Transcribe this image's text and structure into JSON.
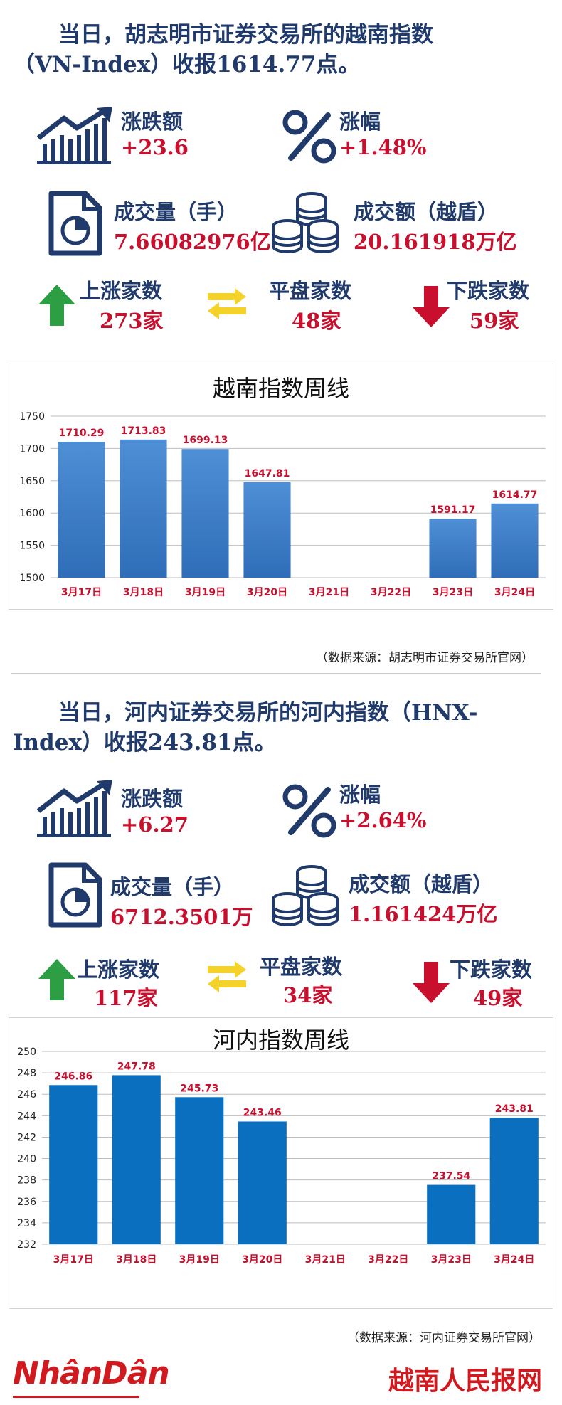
{
  "vn": {
    "headline_line1": "当日，胡志明市证券交易所的越南指数",
    "headline_line2": "（VN-Index）收报1614.77点。",
    "stats": {
      "change_label": "涨跌额",
      "change_value": "+23.6",
      "pct_label": "涨幅",
      "pct_value": "+1.48%",
      "volume_label": "成交量（手）",
      "volume_value": "7.66082976亿",
      "turnover_label": "成交额（越盾）",
      "turnover_value": "20.161918万亿",
      "up_label": "上涨家数",
      "up_value": "273家",
      "flat_label": "平盘家数",
      "flat_value": "48家",
      "down_label": "下跌家数",
      "down_value": "59家"
    },
    "source": "（数据来源：胡志明市证券交易所官网）"
  },
  "hnx": {
    "headline_line1": "当日，河内证券交易所的河内指数（HNX-",
    "headline_line2": "Index）收报243.81点。",
    "stats": {
      "change_label": "涨跌额",
      "change_value": "+6.27",
      "pct_label": "涨幅",
      "pct_value": "+2.64%",
      "volume_label": "成交量（手）",
      "volume_value": "6712.3501万",
      "turnover_label": "成交额（越盾）",
      "turnover_value": "1.161424万亿",
      "up_label": "上涨家数",
      "up_value": "117家",
      "flat_label": "平盘家数",
      "flat_value": "34家",
      "down_label": "下跌家数",
      "down_value": "49家"
    },
    "source": "（数据来源：河内证券交易所官网）"
  },
  "chart_data": [
    {
      "type": "bar",
      "title": "越南指数周线",
      "categories": [
        "3月17日",
        "3月18日",
        "3月19日",
        "3月20日",
        "3月21日",
        "3月22日",
        "3月23日",
        "3月24日"
      ],
      "values": [
        1710.29,
        1713.83,
        1699.13,
        1647.81,
        null,
        null,
        1591.17,
        1614.77
      ],
      "value_labels": [
        "1710.29",
        "1713.83",
        "1699.13",
        "1647.81",
        "",
        "",
        "1591.17",
        "1614.77"
      ],
      "ylim": [
        1500,
        1750
      ],
      "yticks": [
        1500,
        1550,
        1600,
        1650,
        1700,
        1750
      ],
      "grid": true,
      "bar_color": "#2f6db8",
      "bar_color_light": "#4f8fd6",
      "label_color": "#c8102e"
    },
    {
      "type": "bar",
      "title": "河内指数周线",
      "categories": [
        "3月17日",
        "3月18日",
        "3月19日",
        "3月20日",
        "3月21日",
        "3月22日",
        "3月23日",
        "3月24日"
      ],
      "values": [
        246.86,
        247.78,
        245.73,
        243.46,
        null,
        null,
        237.54,
        243.81
      ],
      "value_labels": [
        "246.86",
        "247.78",
        "245.73",
        "243.46",
        "",
        "",
        "237.54",
        "243.81"
      ],
      "ylim": [
        232,
        250
      ],
      "yticks": [
        232,
        234,
        236,
        238,
        240,
        242,
        244,
        246,
        248,
        250
      ],
      "grid": true,
      "bar_color": "#0b6fbf",
      "label_color": "#c8102e"
    }
  ],
  "footer": {
    "brand_left": "NhânDân",
    "brand_right": "越南人民报网"
  },
  "colors": {
    "navy": "#1f3a6b",
    "red": "#c8102e",
    "green": "#2e9e44",
    "yellow": "#f5d229"
  },
  "icons": [
    "trend-chart-icon",
    "percent-icon",
    "document-pie-icon",
    "coin-stack-icon",
    "arrow-up-icon",
    "swap-arrows-icon",
    "arrow-down-icon"
  ]
}
